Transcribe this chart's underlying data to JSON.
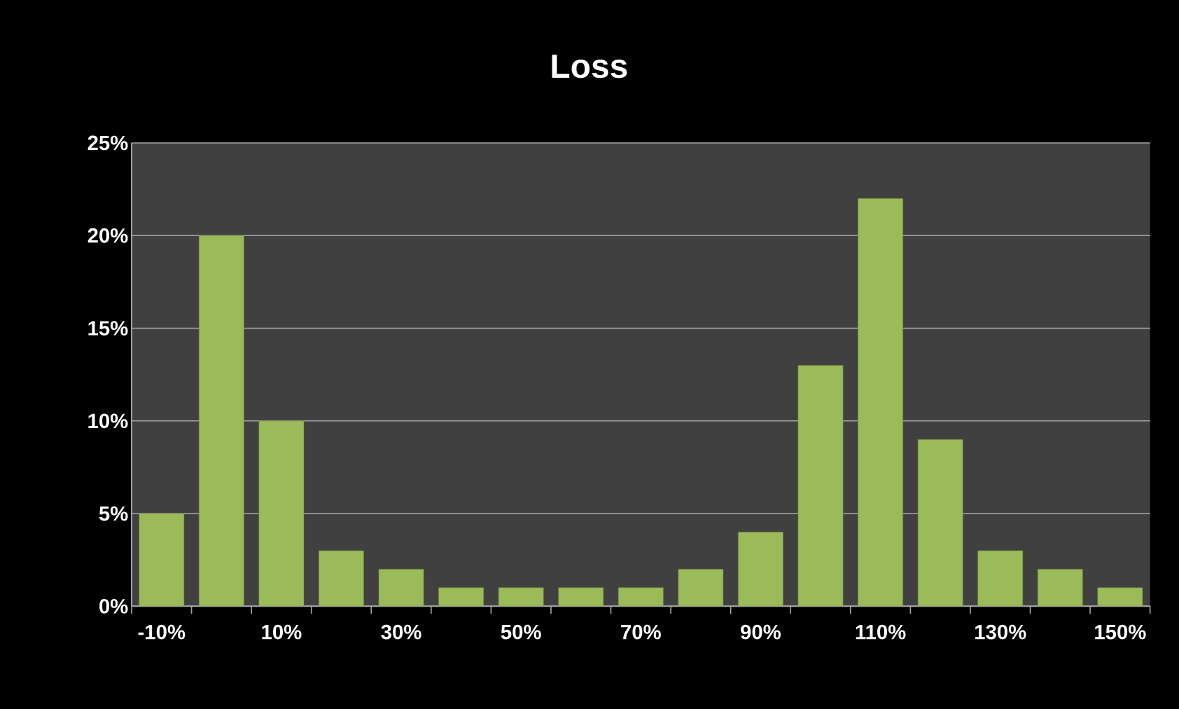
{
  "chart_data": {
    "type": "bar",
    "title": "Loss",
    "categories": [
      "-10%",
      null,
      "10%",
      null,
      "30%",
      null,
      "50%",
      null,
      "70%",
      null,
      "90%",
      null,
      "110%",
      null,
      "130%",
      null,
      "150%"
    ],
    "values": [
      5,
      20,
      10,
      3,
      2,
      1,
      1,
      1,
      1,
      2,
      4,
      13,
      22,
      9,
      3,
      2,
      1
    ],
    "color": "#9bbb59",
    "ylim": [
      0,
      25
    ],
    "yticks": [
      {
        "value": 0,
        "label": "0%"
      },
      {
        "value": 5,
        "label": "5%"
      },
      {
        "value": 10,
        "label": "10%"
      },
      {
        "value": 15,
        "label": "15%"
      },
      {
        "value": 20,
        "label": "20%"
      },
      {
        "value": 25,
        "label": "25%"
      }
    ],
    "grid": "y"
  }
}
